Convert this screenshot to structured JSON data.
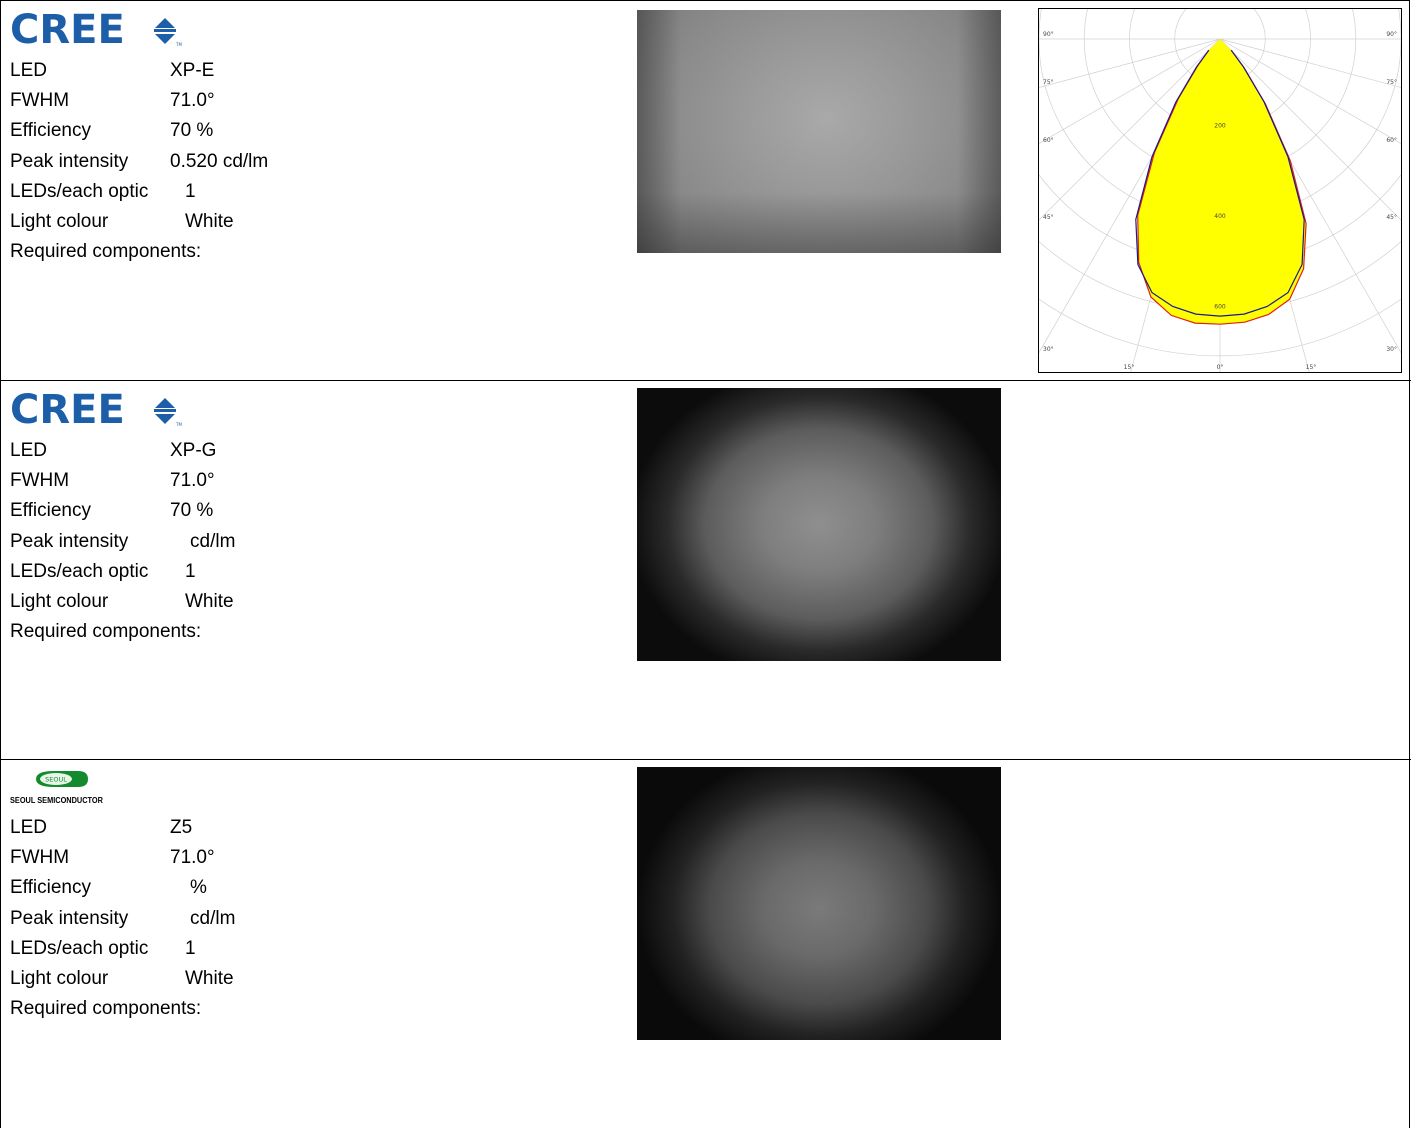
{
  "field_labels": {
    "led": "LED",
    "fwhm": "FWHM",
    "efficiency": "Efficiency",
    "peak_intensity": "Peak intensity",
    "leds_per_optic": "LEDs/each optic",
    "light_colour": "Light colour",
    "required_components": "Required components:"
  },
  "products": [
    {
      "logo": "CREE",
      "led": "XP-E",
      "fwhm": "71.0°",
      "efficiency": "70 %",
      "peak_intensity": "0.520 cd/lm",
      "leds_per_optic": "1",
      "light_colour": "White"
    },
    {
      "logo": "CREE",
      "led": "XP-G",
      "fwhm": "71.0°",
      "efficiency": "70 %",
      "peak_intensity": "cd/lm",
      "leds_per_optic": "1",
      "light_colour": "White"
    },
    {
      "logo_badge": "SEOUL",
      "logo_text": "SEOUL SEMICONDUCTOR",
      "led": "Z5",
      "fwhm": "71.0°",
      "efficiency": "%",
      "peak_intensity": "cd/lm",
      "leds_per_optic": "1",
      "light_colour": "White"
    }
  ],
  "polar_chart": {
    "angle_labels": [
      "90°",
      "75°",
      "60°",
      "45°",
      "30°",
      "15°",
      "0°"
    ],
    "radial_labels": [
      "200",
      "400",
      "600"
    ],
    "colors": {
      "fill": "#ffff00",
      "curve_a": "#1a1a8c",
      "curve_b": "#e0201a"
    }
  },
  "chart_data": {
    "type": "polar",
    "angles_deg": [
      -45,
      -40,
      -35,
      -30,
      -25,
      -20,
      -15,
      -10,
      -5,
      0,
      5,
      10,
      15,
      20,
      25,
      30,
      35,
      40,
      45
    ],
    "radial_ticks": [
      200,
      400,
      600
    ],
    "series": [
      {
        "values": [
          35,
          80,
          170,
          300,
          440,
          530,
          580,
          600,
          610,
          612,
          610,
          600,
          580,
          530,
          440,
          300,
          170,
          80,
          35
        ]
      },
      {
        "values": [
          35,
          75,
          160,
          290,
          430,
          525,
          590,
          620,
          630,
          630,
          628,
          618,
          595,
          540,
          450,
          310,
          175,
          82,
          35
        ]
      }
    ]
  }
}
